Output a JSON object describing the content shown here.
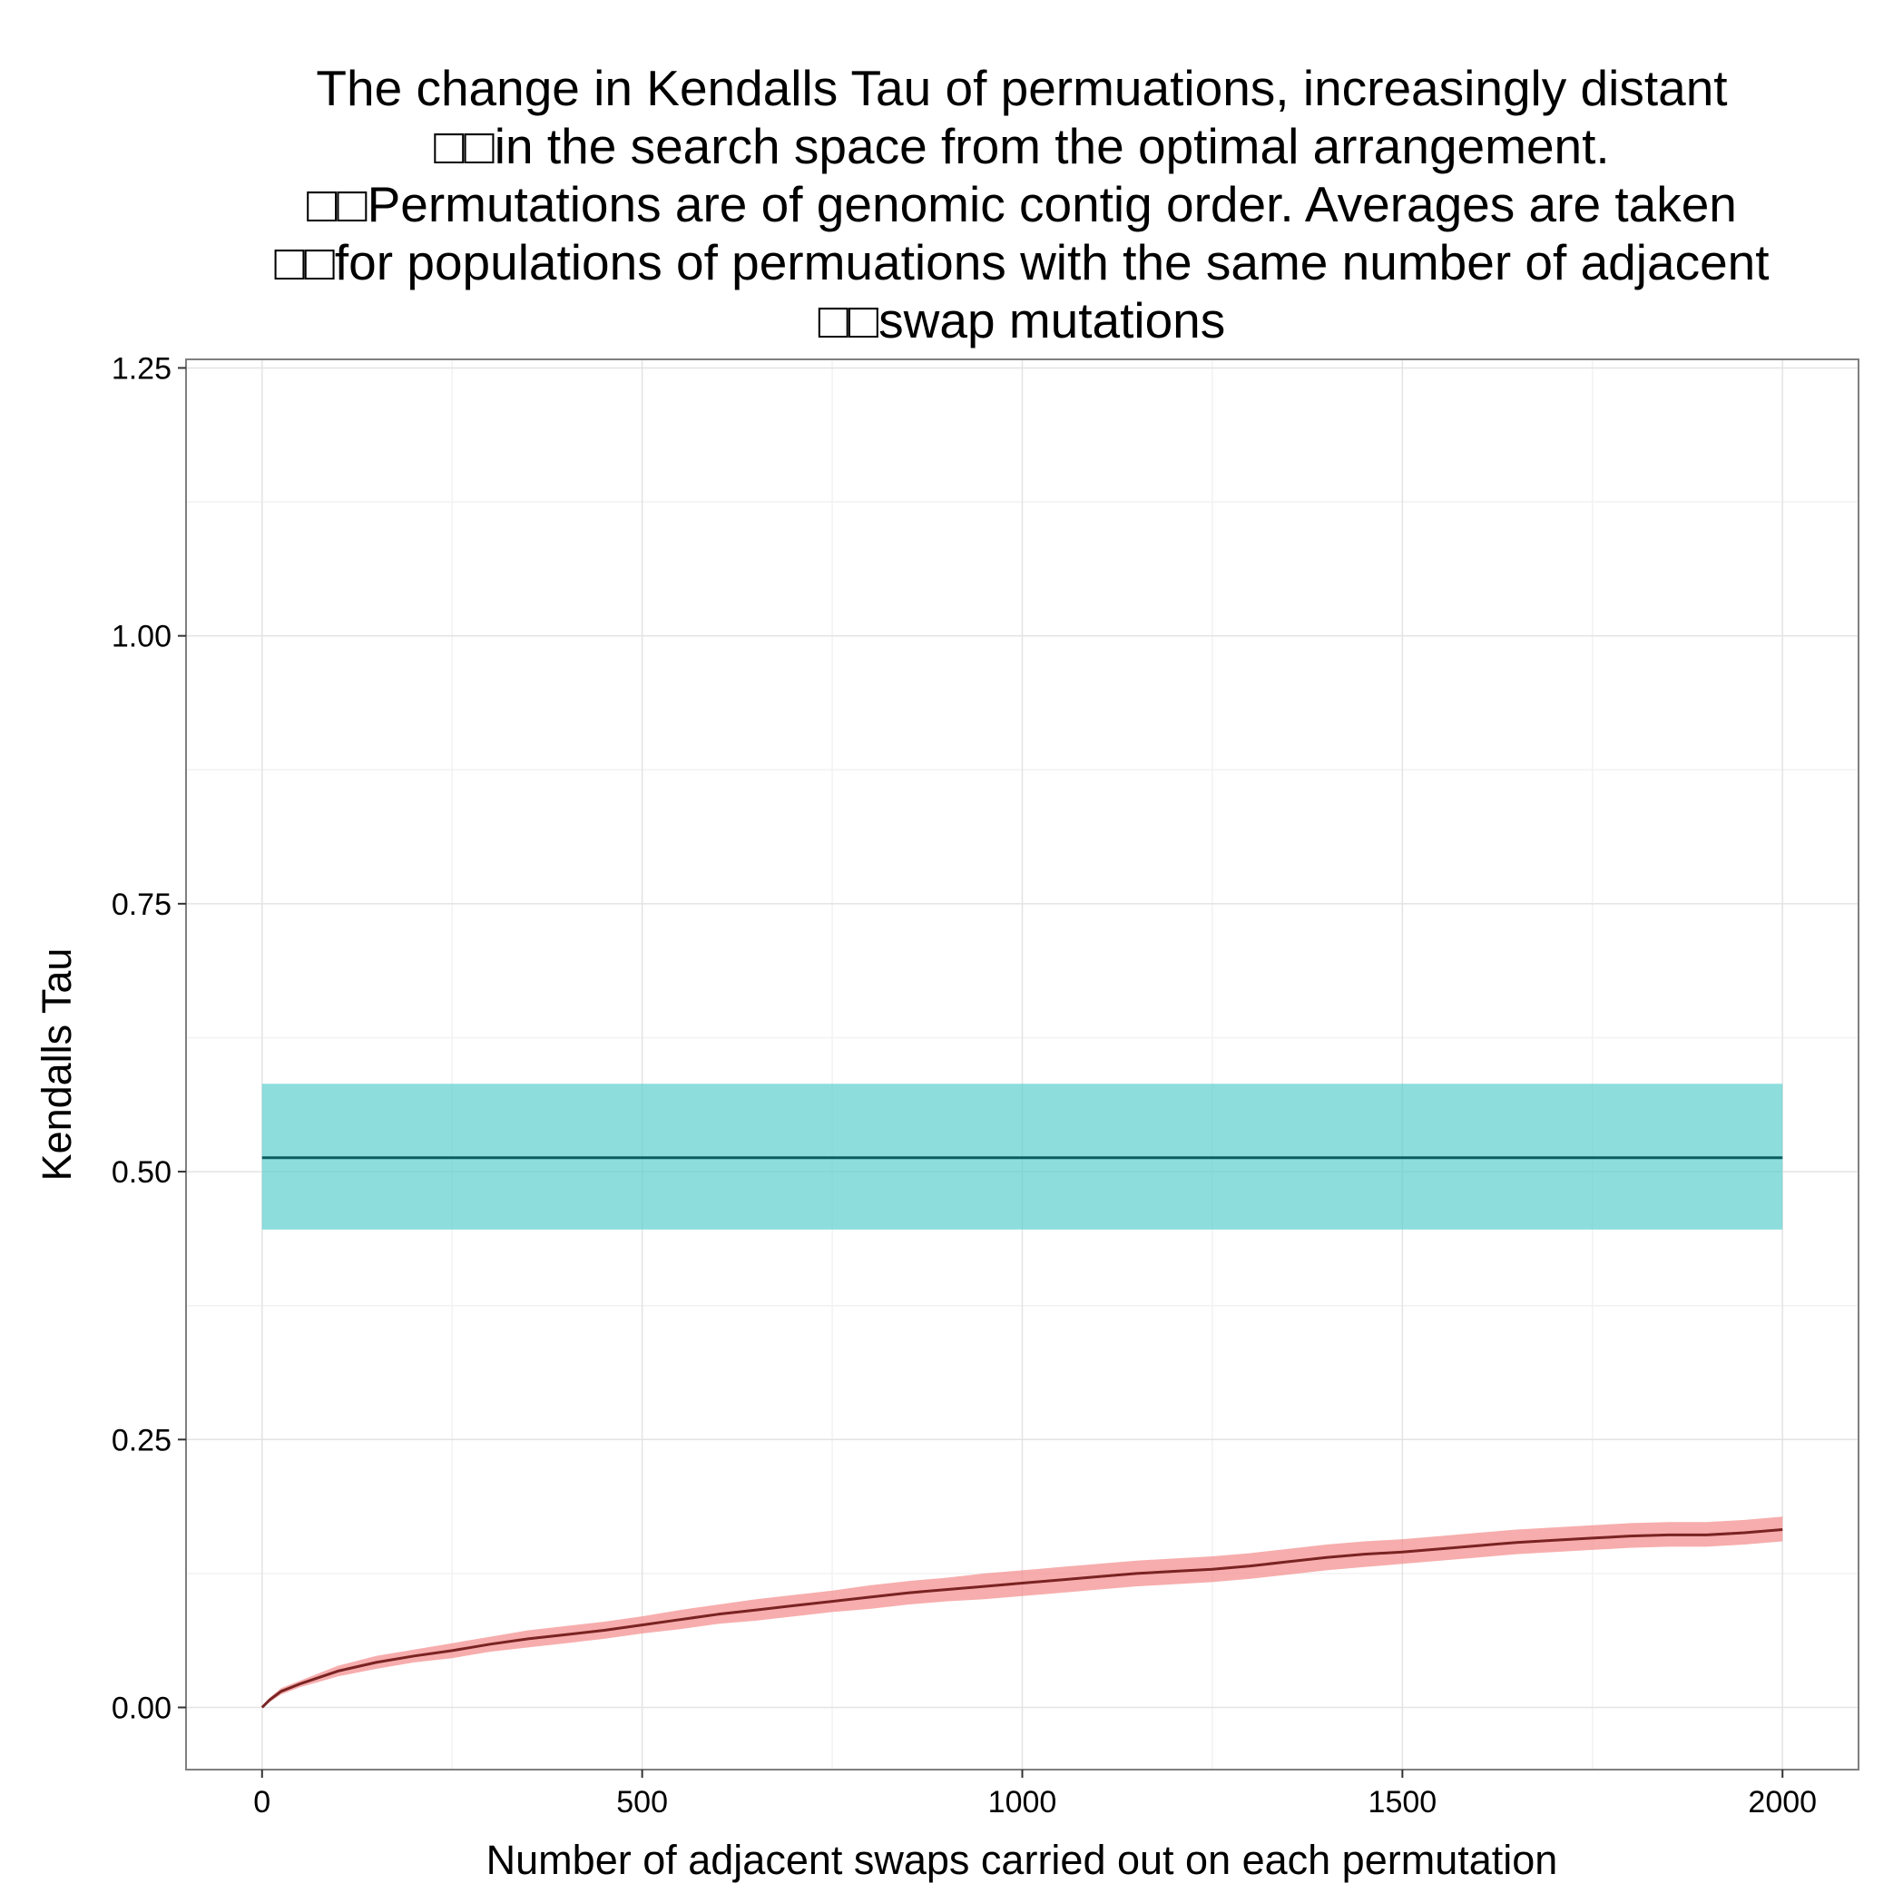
{
  "chart_data": {
    "type": "line",
    "title_lines": [
      "The change in Kendalls Tau of permuations, increasingly distant",
      "□□in the search space from the optimal arrangement.",
      "□□Permutations are of genomic contig order. Averages are taken",
      "□□for populations of permuations with the same number of adjacent",
      "□□swap mutations"
    ],
    "xlabel": "Number of adjacent swaps carried out on each permutation",
    "ylabel": "Kendalls Tau",
    "xlim": [
      -100,
      2100
    ],
    "ylim": [
      -0.058,
      1.258
    ],
    "x_ticks": [
      0,
      500,
      1000,
      1500,
      2000
    ],
    "x_tick_labels": [
      "0",
      "500",
      "1000",
      "1500",
      "2000"
    ],
    "y_ticks": [
      0,
      0.25,
      0.5,
      0.75,
      1.0,
      1.25
    ],
    "y_tick_labels": [
      "0.00",
      "0.25",
      "0.50",
      "0.75",
      "1.00",
      "1.25"
    ],
    "grid": true,
    "legend": "none",
    "series": [
      {
        "line_color": "#0b5e60",
        "ribbon_color": "#5ccfcf",
        "x": [
          0,
          2000
        ],
        "y": [
          0.513,
          0.513
        ],
        "lower": [
          0.446,
          0.446
        ],
        "upper": [
          0.582,
          0.582
        ]
      },
      {
        "line_color": "#7a2323",
        "ribbon_color": "#f48a8a",
        "x": [
          0,
          10,
          25,
          50,
          75,
          100,
          150,
          200,
          250,
          300,
          350,
          400,
          450,
          500,
          550,
          600,
          650,
          700,
          750,
          800,
          850,
          900,
          950,
          1000,
          1050,
          1100,
          1150,
          1200,
          1250,
          1300,
          1350,
          1400,
          1450,
          1500,
          1550,
          1600,
          1650,
          1700,
          1750,
          1800,
          1850,
          1900,
          1950,
          2000
        ],
        "y": [
          0.0,
          0.007,
          0.015,
          0.022,
          0.028,
          0.034,
          0.042,
          0.048,
          0.053,
          0.059,
          0.064,
          0.068,
          0.072,
          0.077,
          0.082,
          0.087,
          0.091,
          0.095,
          0.099,
          0.103,
          0.107,
          0.11,
          0.113,
          0.116,
          0.119,
          0.122,
          0.125,
          0.127,
          0.129,
          0.132,
          0.136,
          0.14,
          0.143,
          0.145,
          0.148,
          0.151,
          0.154,
          0.156,
          0.158,
          0.16,
          0.161,
          0.161,
          0.163,
          0.166
        ],
        "lower": [
          0.0,
          0.005,
          0.012,
          0.019,
          0.024,
          0.029,
          0.036,
          0.042,
          0.046,
          0.052,
          0.056,
          0.06,
          0.064,
          0.069,
          0.073,
          0.078,
          0.081,
          0.085,
          0.089,
          0.092,
          0.096,
          0.099,
          0.101,
          0.104,
          0.107,
          0.11,
          0.113,
          0.115,
          0.117,
          0.12,
          0.124,
          0.128,
          0.131,
          0.134,
          0.137,
          0.14,
          0.143,
          0.145,
          0.147,
          0.149,
          0.15,
          0.15,
          0.152,
          0.155
        ],
        "upper": [
          0.0,
          0.009,
          0.018,
          0.025,
          0.032,
          0.039,
          0.048,
          0.054,
          0.06,
          0.066,
          0.072,
          0.076,
          0.08,
          0.085,
          0.091,
          0.096,
          0.101,
          0.105,
          0.109,
          0.114,
          0.118,
          0.121,
          0.125,
          0.128,
          0.131,
          0.134,
          0.137,
          0.139,
          0.141,
          0.144,
          0.148,
          0.152,
          0.155,
          0.157,
          0.16,
          0.163,
          0.166,
          0.168,
          0.17,
          0.172,
          0.173,
          0.173,
          0.175,
          0.178
        ]
      }
    ]
  }
}
